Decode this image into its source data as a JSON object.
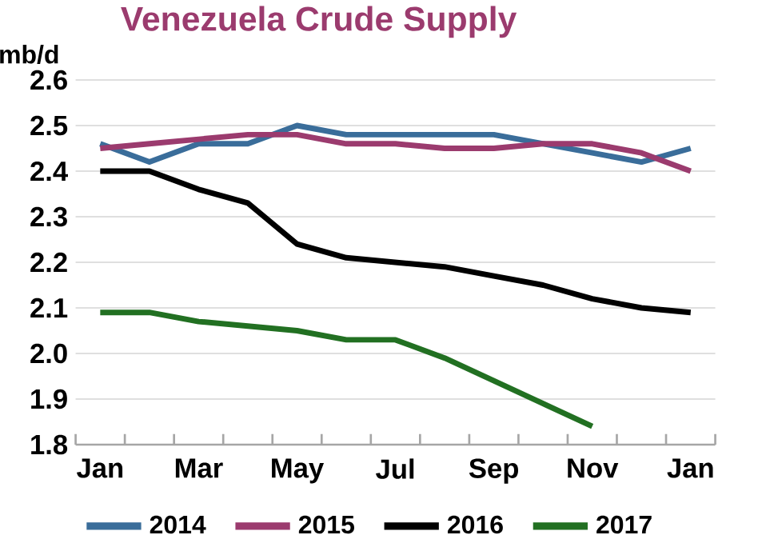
{
  "chart_data": {
    "type": "line",
    "title": "Venezuela Crude Supply",
    "ylabel": "mb/d",
    "categories": [
      "Jan",
      null,
      "Mar",
      null,
      "May",
      null,
      "Jul",
      null,
      "Sep",
      null,
      "Nov",
      null,
      "Jan"
    ],
    "series": [
      {
        "name": "2014",
        "color": "#3a6d9a",
        "values": [
          2.46,
          2.42,
          2.46,
          2.46,
          2.5,
          2.48,
          2.48,
          2.48,
          2.48,
          2.46,
          2.44,
          2.42,
          2.45
        ]
      },
      {
        "name": "2015",
        "color": "#9b3b6e",
        "values": [
          2.45,
          2.46,
          2.47,
          2.48,
          2.48,
          2.46,
          2.46,
          2.45,
          2.45,
          2.46,
          2.46,
          2.44,
          2.4
        ]
      },
      {
        "name": "2016",
        "color": "#000000",
        "values": [
          2.4,
          2.4,
          2.36,
          2.33,
          2.24,
          2.21,
          2.2,
          2.19,
          2.17,
          2.15,
          2.12,
          2.1,
          2.09
        ]
      },
      {
        "name": "2017",
        "color": "#227022",
        "values": [
          2.09,
          2.09,
          2.07,
          2.06,
          2.05,
          2.03,
          2.03,
          1.99,
          1.94,
          1.89,
          1.84,
          null,
          null
        ]
      }
    ],
    "ylim": [
      1.8,
      2.6
    ],
    "yticks": [
      1.8,
      1.9,
      {
        "value": 2,
        "label": "2.0"
      },
      2.1,
      2.2,
      2.3,
      2.4,
      2.5,
      2.6
    ],
    "grid": "y",
    "legend": "bottom",
    "marker": "none",
    "line_style": "solid"
  }
}
